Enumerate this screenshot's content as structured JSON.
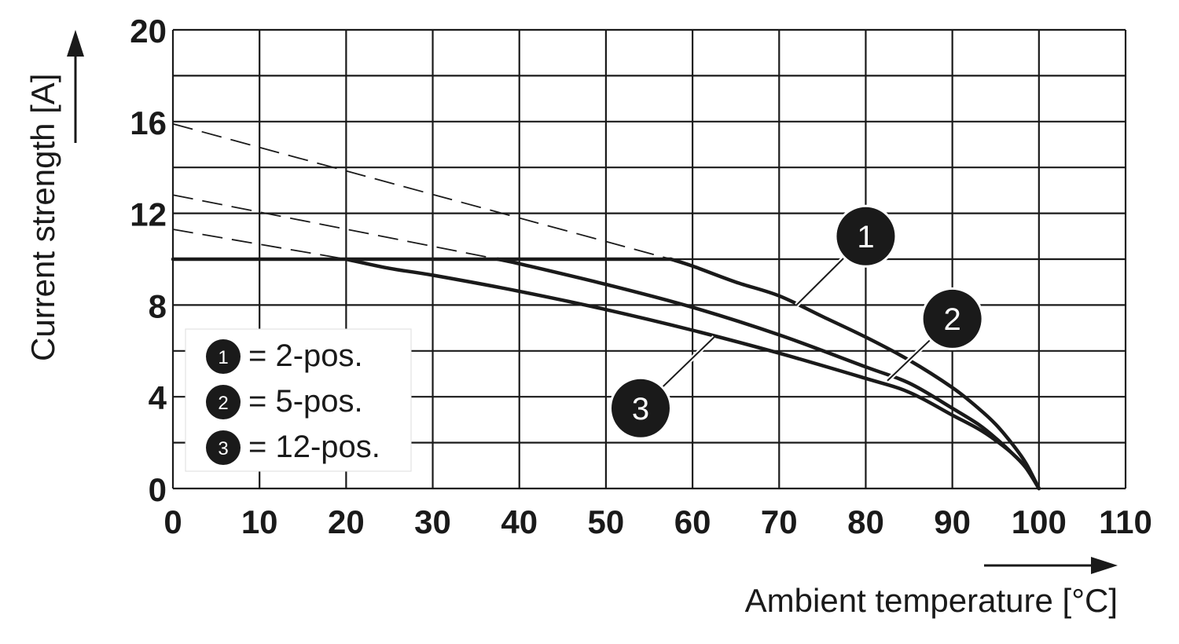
{
  "chart_data": {
    "type": "line",
    "xlabel": "Ambient temperature [°C]",
    "ylabel": "Current strength [A]",
    "xlim": [
      0,
      110
    ],
    "ylim": [
      0,
      20
    ],
    "x_ticks": [
      0,
      10,
      20,
      30,
      40,
      50,
      60,
      70,
      80,
      90,
      100,
      110
    ],
    "y_ticks": [
      0,
      4,
      8,
      12,
      16,
      20
    ],
    "x_tick_labels": [
      "0",
      "10",
      "20",
      "30",
      "40",
      "50",
      "60",
      "70",
      "80",
      "90",
      "100",
      "110"
    ],
    "y_tick_labels": [
      "0",
      "4",
      "8",
      "12",
      "16",
      "20"
    ],
    "grid_x": [
      0,
      10,
      20,
      30,
      40,
      50,
      60,
      70,
      80,
      90,
      100,
      110
    ],
    "grid_y": [
      0,
      2,
      4,
      6,
      8,
      10,
      12,
      14,
      16,
      18,
      20
    ],
    "grid": true,
    "legend_position": "bottom-left",
    "series": [
      {
        "id": "1",
        "name": "2-pos.",
        "values_x": [
          57.5,
          60,
          65,
          70,
          75,
          80,
          85,
          90,
          93,
          95,
          97,
          98.5,
          100
        ],
        "values_y": [
          10,
          9.7,
          9.0,
          8.4,
          7.5,
          6.6,
          5.6,
          4.4,
          3.5,
          2.8,
          1.9,
          1.1,
          0
        ],
        "dashed_x": [
          0,
          57.5
        ],
        "dashed_y": [
          15.9,
          10
        ]
      },
      {
        "id": "2",
        "name": "5-pos.",
        "values_x": [
          37.5,
          40,
          50,
          60,
          70,
          80,
          85,
          90,
          93,
          95,
          97,
          98.5,
          100
        ],
        "values_y": [
          10,
          9.8,
          8.9,
          7.9,
          6.7,
          5.3,
          4.6,
          3.5,
          2.8,
          2.2,
          1.5,
          0.9,
          0
        ],
        "dashed_x": [
          0,
          37.5
        ],
        "dashed_y": [
          12.8,
          10
        ]
      },
      {
        "id": "3",
        "name": "12-pos.",
        "values_x": [
          20,
          25,
          30,
          40,
          50,
          60,
          70,
          80,
          85,
          90,
          93,
          95,
          97,
          98.5,
          100
        ],
        "values_y": [
          10,
          9.6,
          9.3,
          8.6,
          7.8,
          6.9,
          5.9,
          4.8,
          4.2,
          3.2,
          2.6,
          2.1,
          1.5,
          0.9,
          0
        ],
        "dashed_x": [
          0,
          20
        ],
        "dashed_y": [
          11.3,
          10
        ]
      }
    ],
    "plateau": {
      "x": [
        0,
        57.5
      ],
      "y": 10
    },
    "callouts": [
      {
        "label": "1",
        "at_x": 72,
        "at_y": 8.0,
        "badge_x": 80,
        "badge_y": 11.0
      },
      {
        "label": "2",
        "at_x": 82.5,
        "at_y": 4.7,
        "badge_x": 90,
        "badge_y": 7.4
      },
      {
        "label": "3",
        "at_x": 62.5,
        "at_y": 6.6,
        "badge_x": 54,
        "badge_y": 3.5
      }
    ],
    "legend": [
      {
        "badge": "1",
        "text": "= 2-pos."
      },
      {
        "badge": "2",
        "text": "= 5-pos."
      },
      {
        "badge": "3",
        "text": "= 12-pos."
      }
    ]
  }
}
